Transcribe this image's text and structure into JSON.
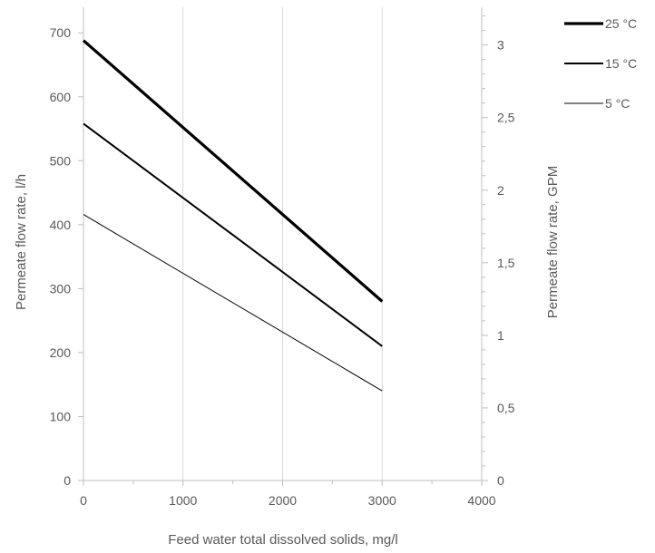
{
  "chart_data": {
    "type": "line",
    "xlabel": "Feed water total dissolved solids, mg/l",
    "ylabel": "Permeate flow rate, l/h",
    "y2label": "Permeate flow rate, GPM",
    "xlim": [
      0,
      4000
    ],
    "ylim": [
      0,
      740
    ],
    "y2lim": [
      0,
      3.26
    ],
    "x_ticks": [
      0,
      1000,
      2000,
      3000,
      4000
    ],
    "x_tick_labels": [
      "0",
      "1000",
      "2000",
      "3000",
      "4000"
    ],
    "x_minor_step": 500,
    "y_ticks": [
      0,
      100,
      200,
      300,
      400,
      500,
      600,
      700
    ],
    "y_tick_labels": [
      "0",
      "100",
      "200",
      "300",
      "400",
      "500",
      "600",
      "700"
    ],
    "y2_ticks": [
      0,
      0.5,
      1,
      1.5,
      2,
      2.5,
      3
    ],
    "y2_tick_labels": [
      "0",
      "0,5",
      "1",
      "1,5",
      "2",
      "2,5",
      "3"
    ],
    "y2_minor_step": 0.1,
    "grid": true,
    "legend_position": "top-right",
    "series": [
      {
        "name": "25 °C",
        "x": [
          0,
          3000
        ],
        "y": [
          688,
          280
        ],
        "line_width": 3.2,
        "color": "#000000"
      },
      {
        "name": "15 °C",
        "x": [
          0,
          3000
        ],
        "y": [
          558,
          210
        ],
        "line_width": 2,
        "color": "#000000"
      },
      {
        "name": "5 °C",
        "x": [
          0,
          3000
        ],
        "y": [
          416,
          140
        ],
        "line_width": 1,
        "color": "#000000"
      }
    ],
    "colors": {
      "grid": "#d9d9d9",
      "axis": "#bfbfbf",
      "text": "#595959"
    }
  }
}
